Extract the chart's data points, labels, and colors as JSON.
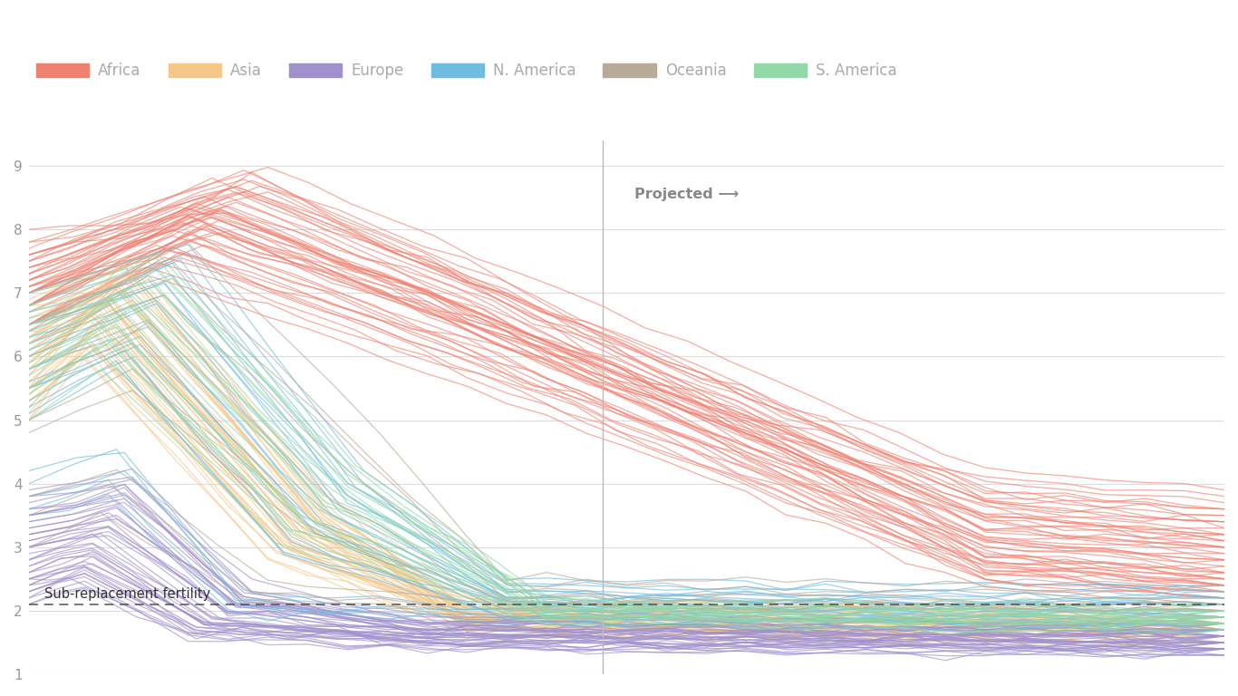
{
  "background_color": "#ffffff",
  "plot_bg_color": "#ffffff",
  "grid_color": "#dddddd",
  "yticks": [
    1,
    2,
    3,
    4,
    5,
    6,
    7,
    8,
    9
  ],
  "ylim": [
    1.0,
    9.4
  ],
  "xlim_start": 1950,
  "xlim_end": 2100,
  "projection_start": 2022,
  "sub_replacement": 2.1,
  "sub_replacement_label": "Sub-replacement fertility",
  "projected_label": "Projected ⟶",
  "legend_entries": [
    {
      "label": "Africa",
      "color": "#f08070"
    },
    {
      "label": "Asia",
      "color": "#f5c88a"
    },
    {
      "label": "Europe",
      "color": "#a090cc"
    },
    {
      "label": "N. America",
      "color": "#70bce0"
    },
    {
      "label": "Oceania",
      "color": "#b8aa98"
    },
    {
      "label": "S. America",
      "color": "#90d8a8"
    }
  ],
  "region_colors": {
    "Africa": "#f08070",
    "Asia": "#f5c88a",
    "Europe": "#a090cc",
    "N. America": "#70bce0",
    "Oceania": "#b8aa98",
    "S. America": "#90d8a8"
  }
}
